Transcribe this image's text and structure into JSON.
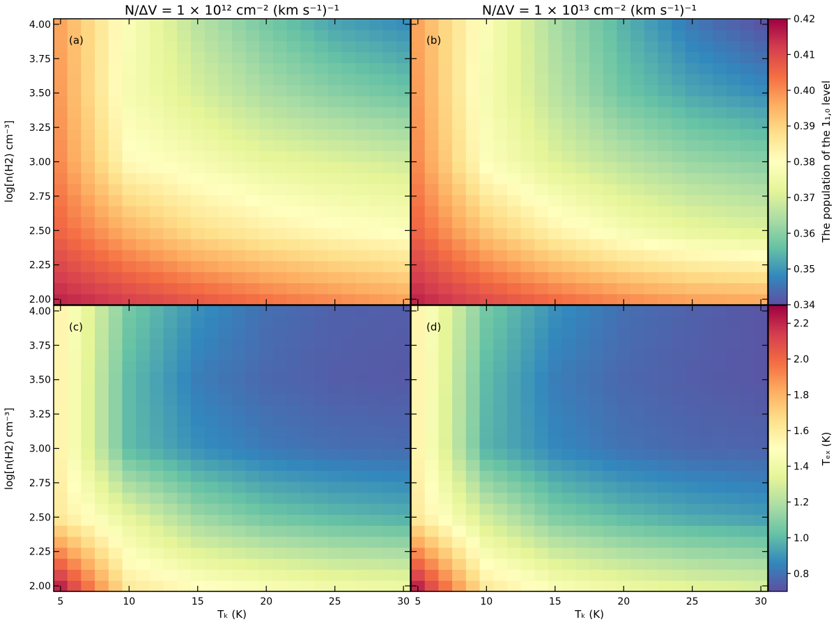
{
  "figure": {
    "titles": {
      "left": "N/ΔV = 1 × 10¹² cm⁻² (km s⁻¹)⁻¹",
      "right": "N/ΔV = 1 × 10¹³ cm⁻² (km s⁻¹)⁻¹"
    },
    "ylabel": "log[n(H2) cm⁻³]",
    "xlabel": "Tₖ (K)",
    "colorbar_top": {
      "label": "The population of the 1₁,₀ level",
      "range": [
        0.34,
        0.42
      ],
      "ticks": [
        "0.42",
        "0.41",
        "0.40",
        "0.39",
        "0.38",
        "0.37",
        "0.36",
        "0.35",
        "0.34"
      ]
    },
    "colorbar_bottom": {
      "label": "Tₑₓ (K)",
      "range": [
        0.7,
        2.3
      ],
      "ticks": [
        "2.2",
        "2.0",
        "1.8",
        "1.6",
        "1.4",
        "1.2",
        "1.0",
        "0.8"
      ]
    },
    "colormap": "Spectral_r"
  },
  "chart_data": [
    {
      "type": "heatmap",
      "panel": "(a)",
      "title": "N/ΔV = 1 × 10¹² cm⁻² (km s⁻¹)⁻¹",
      "xlabel": "",
      "ylabel": "log[n(H2) cm⁻³]",
      "x_range": [
        4.5,
        30.5
      ],
      "y_range": [
        1.96,
        4.04
      ],
      "x_ticks": [
        5,
        10,
        15,
        20,
        25,
        30
      ],
      "y_ticks": [
        2.0,
        2.25,
        2.5,
        2.75,
        3.0,
        3.25,
        3.5,
        3.75,
        4.0
      ],
      "value_name": "population of 1₁,₀ level",
      "value_range": [
        0.34,
        0.42
      ],
      "grid_x": [
        5,
        10,
        15,
        20,
        25,
        30
      ],
      "grid_y": [
        2.0,
        2.5,
        3.0,
        3.5,
        4.0
      ],
      "values": [
        [
          0.415,
          0.411,
          0.407,
          0.403,
          0.4,
          0.397
        ],
        [
          0.405,
          0.395,
          0.388,
          0.384,
          0.381,
          0.379
        ],
        [
          0.4,
          0.381,
          0.377,
          0.373,
          0.371,
          0.369
        ],
        [
          0.398,
          0.377,
          0.37,
          0.364,
          0.36,
          0.357
        ],
        [
          0.397,
          0.378,
          0.366,
          0.358,
          0.352,
          0.349
        ]
      ]
    },
    {
      "type": "heatmap",
      "panel": "(b)",
      "title": "N/ΔV = 1 × 10¹³ cm⁻² (km s⁻¹)⁻¹",
      "xlabel": "",
      "ylabel": "",
      "x_range": [
        4.5,
        30.5
      ],
      "y_range": [
        1.96,
        4.04
      ],
      "x_ticks": [
        5,
        10,
        15,
        20,
        25,
        30
      ],
      "y_ticks": [
        2.0,
        2.25,
        2.5,
        2.75,
        3.0,
        3.25,
        3.5,
        3.75,
        4.0
      ],
      "value_name": "population of 1₁,₀ level",
      "value_range": [
        0.34,
        0.42
      ],
      "grid_x": [
        5,
        10,
        15,
        20,
        25,
        30
      ],
      "grid_y": [
        2.0,
        2.5,
        3.0,
        3.5,
        4.0
      ],
      "values": [
        [
          0.415,
          0.409,
          0.404,
          0.4,
          0.397,
          0.396
        ],
        [
          0.405,
          0.392,
          0.383,
          0.377,
          0.373,
          0.371
        ],
        [
          0.4,
          0.379,
          0.371,
          0.366,
          0.362,
          0.36
        ],
        [
          0.398,
          0.377,
          0.366,
          0.357,
          0.352,
          0.349
        ],
        [
          0.397,
          0.378,
          0.364,
          0.354,
          0.346,
          0.341
        ]
      ]
    },
    {
      "type": "heatmap",
      "panel": "(c)",
      "title": "",
      "xlabel": "Tₖ (K)",
      "ylabel": "log[n(H2) cm⁻³]",
      "x_range": [
        4.5,
        30.5
      ],
      "y_range": [
        1.96,
        4.04
      ],
      "x_ticks": [
        5,
        10,
        15,
        20,
        25,
        30
      ],
      "y_ticks": [
        2.0,
        2.25,
        2.5,
        2.75,
        3.0,
        3.25,
        3.5,
        3.75,
        4.0
      ],
      "value_name": "Tex (K)",
      "value_range": [
        0.7,
        2.3
      ],
      "grid_x": [
        5,
        10,
        15,
        20,
        25,
        30
      ],
      "grid_y": [
        2.0,
        2.5,
        3.0,
        3.5,
        4.0
      ],
      "values": [
        [
          2.2,
          1.6,
          1.5,
          1.45,
          1.4,
          1.38
        ],
        [
          1.6,
          1.35,
          1.15,
          1.05,
          1.0,
          0.97
        ],
        [
          1.55,
          1.0,
          0.88,
          0.82,
          0.79,
          0.78
        ],
        [
          1.55,
          1.0,
          0.83,
          0.77,
          0.74,
          0.73
        ],
        [
          1.55,
          1.05,
          0.88,
          0.79,
          0.75,
          0.74
        ]
      ]
    },
    {
      "type": "heatmap",
      "panel": "(d)",
      "title": "",
      "xlabel": "Tₖ (K)",
      "ylabel": "",
      "x_range": [
        4.5,
        30.5
      ],
      "y_range": [
        1.96,
        4.04
      ],
      "x_ticks": [
        5,
        10,
        15,
        20,
        25,
        30
      ],
      "y_ticks": [
        2.0,
        2.25,
        2.5,
        2.75,
        3.0,
        3.25,
        3.5,
        3.75,
        4.0
      ],
      "value_name": "Tex (K)",
      "value_range": [
        0.7,
        2.3
      ],
      "grid_x": [
        5,
        10,
        15,
        20,
        25,
        30
      ],
      "grid_y": [
        2.0,
        2.5,
        3.0,
        3.5,
        4.0
      ],
      "values": [
        [
          2.2,
          1.6,
          1.45,
          1.38,
          1.33,
          1.3
        ],
        [
          1.6,
          1.28,
          1.08,
          1.0,
          0.95,
          0.92
        ],
        [
          1.55,
          0.98,
          0.86,
          0.8,
          0.77,
          0.76
        ],
        [
          1.55,
          1.0,
          0.83,
          0.77,
          0.74,
          0.72
        ],
        [
          1.55,
          1.05,
          0.88,
          0.79,
          0.75,
          0.72
        ]
      ]
    }
  ]
}
